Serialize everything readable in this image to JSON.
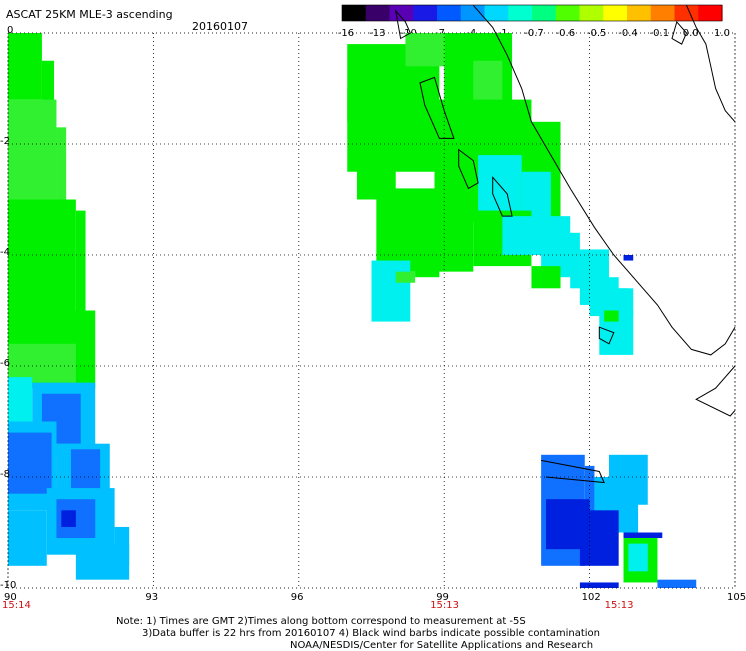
{
  "header": {
    "title": "ASCAT 25KM MLE-3 ascending",
    "date": "20160107"
  },
  "colorbar": {
    "ticks": [
      "-16",
      "-13",
      "-10",
      "-7",
      "-4",
      "-1",
      "-0.7",
      "-0.6",
      "-0.5",
      "-0.4",
      "-0.1",
      "0.0",
      "1.0"
    ],
    "colors": [
      "#000000",
      "#3a006a",
      "#5a00b4",
      "#1a1ae6",
      "#005aff",
      "#0096ff",
      "#00d8ff",
      "#00ffd0",
      "#00ff80",
      "#50ff00",
      "#b0ff00",
      "#ffff00",
      "#ffc000",
      "#ff8000",
      "#ff3000",
      "#ff0000"
    ]
  },
  "map": {
    "lon_ticks": [
      "90",
      "93",
      "96",
      "99",
      "102",
      "105"
    ],
    "lat_ticks": [
      "0",
      "-2",
      "-4",
      "-6",
      "-8",
      "-10"
    ],
    "time_labels": [
      {
        "text": "15:14",
        "lon": 90
      },
      {
        "text": "15:13",
        "lon": 99
      },
      {
        "text": "15:13",
        "lon": 102.6
      }
    ],
    "lon_range": [
      90,
      105
    ],
    "lat_range": [
      -10,
      0
    ],
    "grid": true,
    "swath_colors": {
      "green": "#00f000",
      "lightgreen": "#30f030",
      "cyan": "#00f0f0",
      "skyblue": "#00c0ff",
      "blue": "#1070ff",
      "darkblue": "#0020e0"
    }
  },
  "notes": {
    "line1": "Note: 1) Times are GMT 2)Times along bottom correspond to measurement at -5S",
    "line2": "3)Data buffer is 22 hrs from 20160107 4) Black wind barbs indicate possible contamination",
    "line3": "NOAA/NESDIS/Center for Satellite Applications and Research"
  }
}
